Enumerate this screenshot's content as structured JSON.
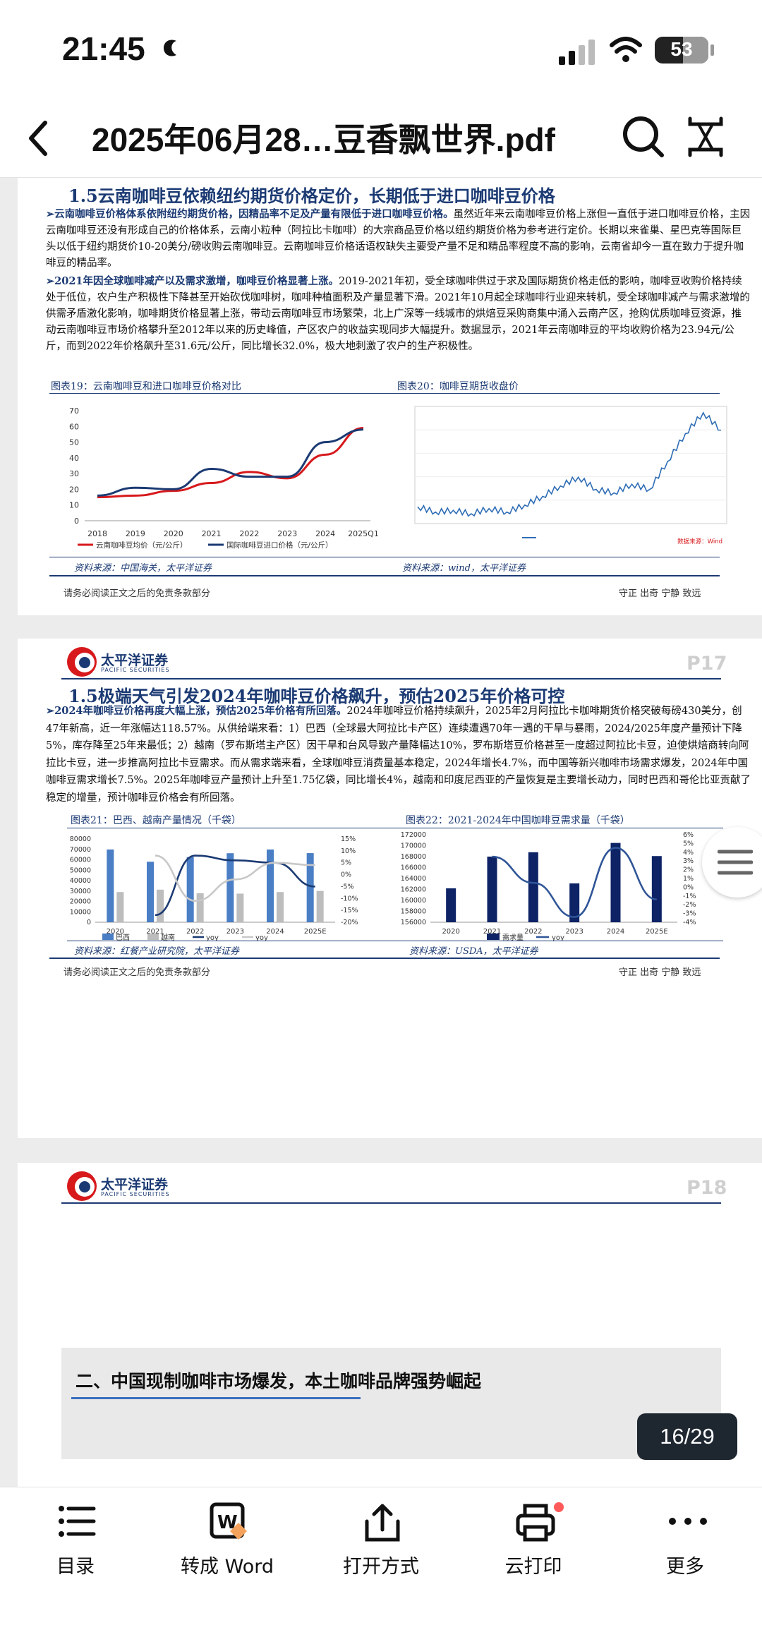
{
  "status": {
    "time": "21:45",
    "battery": "53"
  },
  "header": {
    "title": "2025年06月28…豆香飘世界.pdf"
  },
  "page1": {
    "section_title": "1.5云南咖啡豆依赖纽约期货价格定价，长期低于进口咖啡豆价格",
    "p1_bold": "➢云南咖啡豆价格体系依附纽约期货价格，因精品率不足及产量有限低于进口咖啡豆价格。",
    "p1_text": "虽然近年来云南咖啡豆价格上涨但一直低于进口咖啡豆价格，主因云南咖啡豆还没有形成自己的价格体系，云南小粒种（阿拉比卡咖啡）的大宗商品豆价格以纽约期货价格为参考进行定价。长期以来雀巢、星巴克等国际巨头以低于纽约期货价10-20美分/磅收购云南咖啡豆。云南咖啡豆价格话语权缺失主要受产量不足和精品率程度不高的影响，云南省却今一直在致力于提升咖啡豆的精品率。",
    "p2_bold": "➢2021年因全球咖啡减产以及需求激增，咖啡豆价格显著上涨。",
    "p2_text": "2019-2021年初，受全球咖啡供过于求及国际期货价格走低的影响，咖啡豆收购价格持续处于低位，农户生产积极性下降甚至开始砍伐咖啡树，咖啡种植面积及产量显著下滑。2021年10月起全球咖啡行业迎来转机，受全球咖啡减产与需求激增的供需矛盾激化影响，咖啡期货价格显著上涨，带动云南咖啡豆市场繁荣，北上广深等一线城市的烘焙豆采购商集中涌入云南产区，抢购优质咖啡豆资源，推动云南咖啡豆市场价格攀升至2012年以来的历史峰值，产区农户的收益实现同步大幅提升。数据显示，2021年云南咖啡豆的平均收购价格为23.94元/公斤，而到2022年价格飙升至31.6元/公斤，同比增长32.0%，极大地刺激了农户的生产积极性。",
    "cap19": "图表19：云南咖啡豆和进口咖啡豆价格对比",
    "cap20": "图表20：咖啡豆期货收盘价",
    "src1": "资料来源：中国海关，太平洋证券",
    "src2": "资料来源：wind，太平洋证券",
    "footer_left": "请务必阅读正文之后的免责条款部分",
    "footer_right": "守正 出奇 宁静 致远"
  },
  "page2": {
    "logo": "太平洋证券",
    "logo_en": "PACIFIC SECURITIES",
    "page_no": "P17",
    "section_title": "1.5极端天气引发2024年咖啡豆价格飙升，预估2025年价格可控",
    "p_bold": "➢2024年咖啡豆价格再度大幅上涨，预估2025年价格有所回落。",
    "p_text": "2024年咖啡豆价格持续飙升，2025年2月阿拉比卡咖啡期货价格突破每磅430美分，创47年新高，近一年涨幅达118.57%。从供给端来看：1）巴西（全球最大阿拉比卡产区）连续遭遇70年一遇的干旱与暴雨，2024/2025年度产量预计下降5%，库存降至25年来最低；2）越南（罗布斯塔主产区）因干旱和台风导致产量降幅达10%，罗布斯塔豆价格甚至一度超过阿拉比卡豆，迫使烘焙商转向阿拉比卡豆，进一步推高阿拉比卡豆需求。而从需求端来看，全球咖啡豆消费量基本稳定，2024年增长4.7%，而中国等新兴咖啡市场需求爆发，2024年中国咖啡豆需求增长7.5%。2025年咖啡豆产量预计上升至1.75亿袋，同比增长4%，越南和印度尼西亚的产量恢复是主要增长动力，同时巴西和哥伦比亚贡献了稳定的增量，预计咖啡豆价格会有所回落。",
    "cap21": "图表21：巴西、越南产量情况（千袋）",
    "cap22": "图表22：2021-2024年中国咖啡豆需求量（千袋）",
    "src1": "资料来源：红餐产业研究院，太平洋证券",
    "src2": "资料来源：USDA，太平洋证券",
    "footer_left": "请务必阅读正文之后的免责条款部分",
    "footer_right": "守正 出奇 宁静 致远"
  },
  "page3": {
    "logo": "太平洋证券",
    "logo_en": "PACIFIC SECURITIES",
    "page_no": "P18",
    "heading": "二、中国现制咖啡市场爆发，本土咖啡品牌强势崛起"
  },
  "page_counter": "16/29",
  "toolbar": {
    "toc": "目录",
    "to_word": "转成 Word",
    "open_with": "打开方式",
    "cloud_print": "云打印",
    "more": "更多"
  },
  "chart_data": [
    {
      "type": "line",
      "title": "图表19：云南咖啡豆和进口咖啡豆价格对比",
      "categories": [
        "2018",
        "2019",
        "2020",
        "2021",
        "2022",
        "2023",
        "2024",
        "2025Q1"
      ],
      "ylim": [
        0,
        70
      ],
      "yticks": [
        0,
        10,
        20,
        30,
        40,
        50,
        60,
        70
      ],
      "series": [
        {
          "name": "云南咖啡豆均价（元/公斤）",
          "color": "#d7191c",
          "values": [
            15,
            16,
            19,
            24,
            31,
            27,
            42,
            59
          ]
        },
        {
          "name": "国际咖啡豆进口价格（元/公斤）",
          "color": "#1b3a73",
          "values": [
            16,
            21,
            20,
            33,
            28,
            28,
            50,
            58
          ]
        }
      ]
    },
    {
      "type": "line",
      "title": "图表20：咖啡豆期货收盘价",
      "note": "数据来源：Wind",
      "values_trend": [
        120,
        105,
        110,
        100,
        115,
        105,
        125,
        150,
        180,
        205,
        170,
        160,
        185,
        170,
        250,
        330,
        390,
        340
      ]
    },
    {
      "type": "bar",
      "title": "图表21：巴西、越南产量情况（千袋）",
      "categories": [
        "2020",
        "2021",
        "2022",
        "2023",
        "2024",
        "2025E"
      ],
      "ylim": [
        0,
        80000
      ],
      "yticks": [
        0,
        10000,
        20000,
        30000,
        40000,
        50000,
        60000,
        70000,
        80000
      ],
      "y2ticks": [
        "-20%",
        "-15%",
        "-10%",
        "-5%",
        "0%",
        "5%",
        "10%",
        "15%"
      ],
      "y2lim": [
        -20,
        15
      ],
      "series": [
        {
          "name": "巴西",
          "color": "#4a7ec5",
          "values": [
            69900,
            58100,
            62600,
            66300,
            69900,
            66400
          ]
        },
        {
          "name": "越南",
          "color": "#bdbdbd",
          "values": [
            29000,
            31300,
            27900,
            27500,
            29000,
            30100
          ]
        },
        {
          "name": "yoy",
          "color": "#1b3a73",
          "type": "line",
          "values": [
            null,
            -17,
            8,
            6,
            5,
            -5
          ]
        },
        {
          "name": "yoy",
          "color": "#c8c8c8",
          "type": "line",
          "values": [
            null,
            8,
            -11,
            -2,
            5,
            4
          ]
        }
      ]
    },
    {
      "type": "bar",
      "title": "图表22：2021-2024年中国咖啡豆需求量（千袋）",
      "categories": [
        "2020",
        "2021",
        "2022",
        "2023",
        "2024",
        "2025E"
      ],
      "ylim": [
        156000,
        172000
      ],
      "yticks": [
        156000,
        158000,
        160000,
        162000,
        164000,
        166000,
        168000,
        170000,
        172000
      ],
      "y2ticks": [
        "-4%",
        "-3%",
        "-2%",
        "-1%",
        "0%",
        "1%",
        "2%",
        "3%",
        "4%",
        "5%",
        "6%"
      ],
      "y2lim": [
        -4,
        6
      ],
      "series": [
        {
          "name": "需求量",
          "color": "#0d2366",
          "values": [
            162200,
            168000,
            168800,
            163100,
            170500,
            168100
          ]
        },
        {
          "name": "yoy",
          "color": "#2f5597",
          "type": "line",
          "values": [
            null,
            3.5,
            0.5,
            -3.4,
            4.5,
            -1.4
          ]
        }
      ]
    }
  ]
}
